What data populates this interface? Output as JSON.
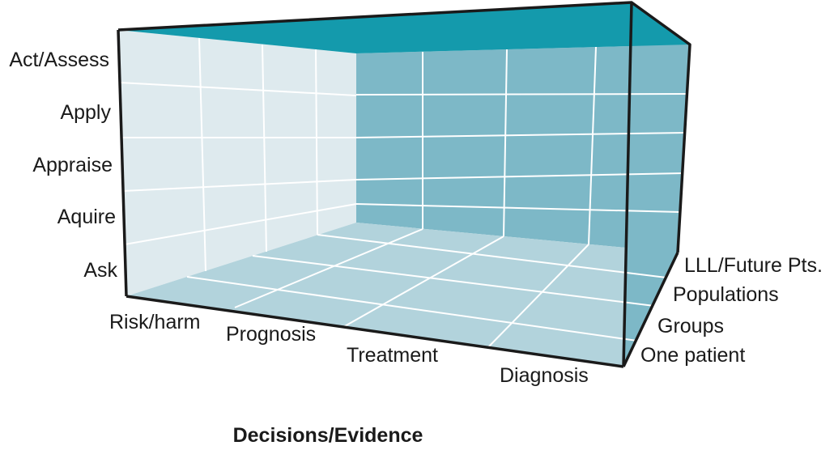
{
  "diagram": {
    "title": "Decisions/Evidence",
    "vertical_axis": {
      "labels": [
        "Act/Assess",
        "Apply",
        "Appraise",
        "Aquire",
        "Ask"
      ]
    },
    "front_axis": {
      "labels": [
        "Risk/harm",
        "Prognosis",
        "Treatment",
        "Diagnosis"
      ]
    },
    "depth_axis": {
      "labels": [
        "LLL/Future Pts.",
        "Populations",
        "Groups",
        "One patient"
      ]
    },
    "colors": {
      "top_face": "#149aac",
      "back_wall": "#7db8c7",
      "left_wall": "#deeaee",
      "floor": "#b2d3dc",
      "edge": "#1a1a1a"
    }
  }
}
